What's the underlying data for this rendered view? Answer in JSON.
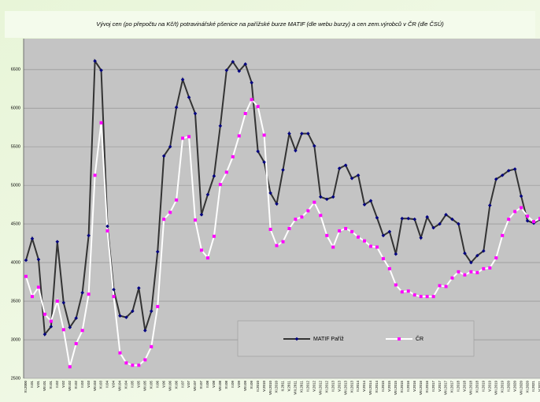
{
  "chart_data": {
    "type": "line",
    "title": "Vývoj cen (po přepočtu na Kč/t) potravinářské pšenice na pařížské burze MATIF (dle webu burzy) a cen zem.výrobců v ČR (dle ČSÚ)",
    "categories": [
      "XI.2000",
      "II.01",
      "V.01",
      "VIII.01",
      "XI.01",
      "II.02",
      "V.02",
      "VIII.02",
      "XI.02",
      "II.03",
      "V.03",
      "VIII.03",
      "XI.03",
      "II.04",
      "V.04",
      "VIII.04",
      "XI.04",
      "II.05",
      "V.05",
      "VIII.05",
      "XI.05",
      "II.06",
      "V.06",
      "VIII.06",
      "XI.06",
      "II.07",
      "V.07",
      "VIII.07",
      "XI.07",
      "II.08",
      "V.08",
      "VIII.08",
      "XI.08",
      "II.09",
      "V.09",
      "VIII.09",
      "XI.09",
      "II.2010",
      "V.2010",
      "VIII.2010",
      "XI.2010",
      "II.2011",
      "V.2011",
      "VIII.2011",
      "XI.2011",
      "II.2012",
      "V.2012",
      "VIII.2012",
      "XI.2012",
      "II.2013",
      "V.2013",
      "VIII.2013",
      "XI.2013",
      "II.2014",
      "V.2014",
      "VIII.2014",
      "XI.2014",
      "II.2015",
      "V.2015",
      "VIII.2015",
      "XI.2015",
      "II.2016",
      "V.2016",
      "VIII.2016",
      "XI.2016",
      "II.2017",
      "V.2017",
      "VIII.2017",
      "XI.2017",
      "II.2018",
      "V.2018",
      "VIII.2018",
      "XI.2018",
      "II.2019",
      "V.2019",
      "VIII.2019",
      "XI.2019",
      "II.2020",
      "V.2020",
      "VIII.2020",
      "XI.2020",
      "II.2021",
      "V.2021"
    ],
    "series": [
      {
        "name": "MATIF Paříž",
        "color": "#000080",
        "line_color": "#333333",
        "marker": "diamond",
        "values": [
          4030,
          4310,
          4040,
          3070,
          3170,
          4270,
          3480,
          3160,
          3280,
          3610,
          4350,
          6610,
          6490,
          4470,
          3650,
          3310,
          3290,
          3370,
          3670,
          3120,
          3370,
          4140,
          5380,
          5500,
          6010,
          6370,
          6140,
          5930,
          4620,
          4880,
          5120,
          5770,
          6490,
          6600,
          6480,
          6570,
          6330,
          5440,
          5300,
          4900,
          4760,
          5200,
          5670,
          5450,
          5670,
          5670,
          5510,
          4850,
          4820,
          4850,
          5220,
          5260,
          5090,
          5130,
          4750,
          4800,
          4580,
          4350,
          4400,
          4110,
          4570,
          4570,
          4560,
          4320,
          4590,
          4450,
          4500,
          4620,
          4560,
          4500,
          4120,
          4000,
          4090,
          4150,
          4740,
          5080,
          5130,
          5190,
          5210,
          4860,
          4540,
          4510,
          4560
        ]
      },
      {
        "name": "ČR",
        "color": "#ff00ff",
        "line_color": "#ffffff",
        "marker": "square",
        "values": [
          3820,
          3560,
          3680,
          3330,
          3240,
          3500,
          3130,
          2650,
          2950,
          3120,
          3590,
          5130,
          5810,
          4410,
          3560,
          2830,
          2700,
          2670,
          2670,
          2740,
          2910,
          3430,
          4560,
          4650,
          4810,
          5610,
          5630,
          4550,
          4160,
          4060,
          4340,
          5010,
          5170,
          5370,
          5640,
          5930,
          6110,
          6020,
          5650,
          4430,
          4220,
          4270,
          4440,
          4560,
          4590,
          4670,
          4780,
          4610,
          4350,
          4200,
          4410,
          4440,
          4400,
          4330,
          4280,
          4210,
          4200,
          4050,
          3920,
          3710,
          3620,
          3630,
          3580,
          3560,
          3560,
          3560,
          3700,
          3690,
          3800,
          3880,
          3840,
          3880,
          3870,
          3920,
          3930,
          4060,
          4350,
          4560,
          4660,
          4710,
          4600,
          4530,
          4570
        ]
      }
    ],
    "ylim": [
      2500,
      6900
    ],
    "yticks": [
      2500,
      3000,
      3500,
      4000,
      4500,
      5000,
      5500,
      6000,
      6500
    ],
    "grid": true
  }
}
